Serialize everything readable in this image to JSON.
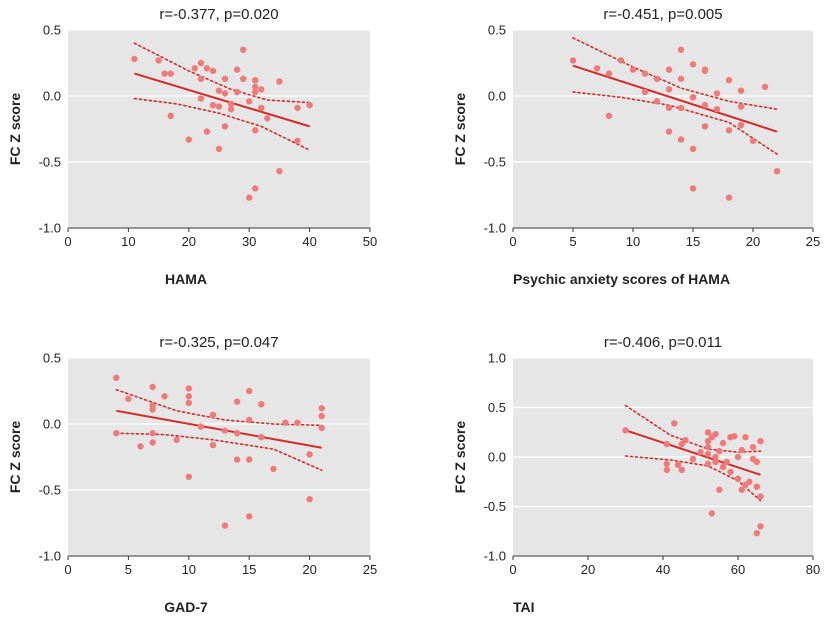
{
  "colors": {
    "point": "#f07a7a",
    "fit_line": "#d42a2a",
    "ci_line": "#d42a2a",
    "plot_background": "#e6e6e6",
    "grid": "#ffffff"
  },
  "chart_data": [
    {
      "type": "scatter",
      "title": "r=-0.377, p=0.020",
      "xlabel": "HAMA",
      "ylabel": "FC Z score",
      "xlim": [
        0,
        50
      ],
      "ylim": [
        -1.0,
        0.5
      ],
      "xticks": [
        0,
        10,
        20,
        30,
        40,
        50
      ],
      "yticks": [
        0.5,
        0.0,
        -0.5,
        -1.0
      ],
      "xtick_labels": [
        "0",
        "10",
        "20",
        "30",
        "40",
        "50"
      ],
      "ytick_labels": [
        "0.5",
        "0.0",
        "-0.5",
        "-1.0"
      ],
      "points": [
        [
          11,
          0.28
        ],
        [
          15,
          0.27
        ],
        [
          16,
          0.17
        ],
        [
          17,
          0.17
        ],
        [
          17,
          -0.15
        ],
        [
          20,
          -0.33
        ],
        [
          21,
          0.21
        ],
        [
          22,
          0.25
        ],
        [
          22,
          0.13
        ],
        [
          22,
          -0.02
        ],
        [
          23,
          -0.27
        ],
        [
          23,
          0.21
        ],
        [
          24,
          0.19
        ],
        [
          24,
          -0.07
        ],
        [
          25,
          0.04
        ],
        [
          25,
          -0.08
        ],
        [
          25,
          -0.4
        ],
        [
          26,
          0.13
        ],
        [
          26,
          0.02
        ],
        [
          26,
          -0.23
        ],
        [
          27,
          -0.06
        ],
        [
          27,
          -0.1
        ],
        [
          28,
          0.2
        ],
        [
          28,
          0.03
        ],
        [
          29,
          0.35
        ],
        [
          29,
          0.13
        ],
        [
          30,
          -0.77
        ],
        [
          30,
          -0.04
        ],
        [
          31,
          0.12
        ],
        [
          31,
          0.07
        ],
        [
          31,
          0.03
        ],
        [
          31,
          -0.7
        ],
        [
          31,
          -0.26
        ],
        [
          32,
          0.05
        ],
        [
          32,
          -0.09
        ],
        [
          33,
          -0.17
        ],
        [
          35,
          0.11
        ],
        [
          35,
          -0.57
        ],
        [
          38,
          -0.09
        ],
        [
          38,
          -0.34
        ],
        [
          40,
          -0.07
        ]
      ],
      "fit": {
        "x": [
          11,
          40
        ],
        "y": [
          0.17,
          -0.23
        ]
      },
      "ci_upper": {
        "x": [
          11,
          20,
          27,
          33,
          40
        ],
        "y": [
          0.4,
          0.19,
          0.05,
          -0.03,
          -0.05
        ]
      },
      "ci_lower": {
        "x": [
          11,
          18,
          25,
          32,
          40
        ],
        "y": [
          -0.02,
          -0.06,
          -0.13,
          -0.23,
          -0.41
        ]
      }
    },
    {
      "type": "scatter",
      "title": "r=-0.451, p=0.005",
      "xlabel": "Psychic anxiety scores of HAMA",
      "ylabel": "FC Z score",
      "xlim": [
        0,
        25
      ],
      "ylim": [
        -1.0,
        0.5
      ],
      "xticks": [
        0,
        5,
        10,
        15,
        20,
        25
      ],
      "yticks": [
        0.5,
        0.0,
        -0.5,
        -1.0
      ],
      "xtick_labels": [
        "0",
        "5",
        "10",
        "15",
        "20",
        "25"
      ],
      "ytick_labels": [
        "0.5",
        "0.0",
        "-0.5",
        "-1.0"
      ],
      "points": [
        [
          5,
          0.27
        ],
        [
          7,
          0.21
        ],
        [
          8,
          0.17
        ],
        [
          8,
          -0.15
        ],
        [
          9,
          0.27
        ],
        [
          10,
          0.2
        ],
        [
          11,
          0.17
        ],
        [
          11,
          0.03
        ],
        [
          12,
          0.13
        ],
        [
          12,
          -0.04
        ],
        [
          13,
          0.2
        ],
        [
          13,
          0.05
        ],
        [
          13,
          -0.09
        ],
        [
          13,
          -0.27
        ],
        [
          14,
          0.35
        ],
        [
          14,
          0.13
        ],
        [
          14,
          -0.09
        ],
        [
          14,
          -0.33
        ],
        [
          15,
          0.24
        ],
        [
          15,
          -0.01
        ],
        [
          15,
          -0.4
        ],
        [
          15,
          -0.7
        ],
        [
          16,
          0.2
        ],
        [
          16,
          0.19
        ],
        [
          16,
          -0.07
        ],
        [
          16,
          -0.23
        ],
        [
          17,
          0.02
        ],
        [
          17,
          -0.1
        ],
        [
          18,
          0.12
        ],
        [
          18,
          -0.77
        ],
        [
          18,
          -0.26
        ],
        [
          19,
          0.04
        ],
        [
          19,
          -0.08
        ],
        [
          19,
          -0.22
        ],
        [
          20,
          -0.34
        ],
        [
          21,
          0.07
        ],
        [
          22,
          -0.57
        ]
      ],
      "fit": {
        "x": [
          5,
          22
        ],
        "y": [
          0.23,
          -0.27
        ]
      },
      "ci_upper": {
        "x": [
          5,
          10,
          14,
          18,
          22
        ],
        "y": [
          0.44,
          0.22,
          0.06,
          -0.04,
          -0.1
        ]
      },
      "ci_lower": {
        "x": [
          5,
          9,
          13,
          18,
          22
        ],
        "y": [
          0.03,
          -0.01,
          -0.07,
          -0.2,
          -0.44
        ]
      }
    },
    {
      "type": "scatter",
      "title": "r=-0.325, p=0.047",
      "xlabel": "GAD-7",
      "ylabel": "FC Z score",
      "xlim": [
        0,
        25
      ],
      "ylim": [
        -1.0,
        0.5
      ],
      "xticks": [
        0,
        5,
        10,
        15,
        20,
        25
      ],
      "yticks": [
        0.5,
        0.0,
        -0.5,
        -1.0
      ],
      "xtick_labels": [
        "0",
        "5",
        "10",
        "15",
        "20",
        "25"
      ],
      "ytick_labels": [
        "0.5",
        "0.0",
        "-0.5",
        "-1.0"
      ],
      "points": [
        [
          4,
          0.35
        ],
        [
          4,
          -0.07
        ],
        [
          5,
          0.19
        ],
        [
          6,
          -0.17
        ],
        [
          7,
          0.28
        ],
        [
          7,
          0.14
        ],
        [
          7,
          0.11
        ],
        [
          7,
          -0.07
        ],
        [
          7,
          -0.14
        ],
        [
          8,
          0.21
        ],
        [
          9,
          -0.12
        ],
        [
          10,
          0.27
        ],
        [
          10,
          0.21
        ],
        [
          10,
          0.16
        ],
        [
          10,
          -0.4
        ],
        [
          11,
          -0.02
        ],
        [
          12,
          0.07
        ],
        [
          12,
          -0.16
        ],
        [
          13,
          -0.77
        ],
        [
          13,
          -0.05
        ],
        [
          14,
          0.17
        ],
        [
          14,
          -0.07
        ],
        [
          14,
          -0.27
        ],
        [
          15,
          0.25
        ],
        [
          15,
          0.03
        ],
        [
          15,
          -0.27
        ],
        [
          15,
          -0.7
        ],
        [
          16,
          0.15
        ],
        [
          16,
          -0.1
        ],
        [
          17,
          -0.34
        ],
        [
          18,
          0.01
        ],
        [
          19,
          0.01
        ],
        [
          20,
          -0.23
        ],
        [
          20,
          -0.57
        ],
        [
          21,
          0.12
        ],
        [
          21,
          0.06
        ],
        [
          21,
          -0.03
        ]
      ],
      "fit": {
        "x": [
          4,
          21
        ],
        "y": [
          0.1,
          -0.18
        ]
      },
      "ci_upper": {
        "x": [
          4,
          9,
          13,
          17,
          21
        ],
        "y": [
          0.26,
          0.1,
          0.03,
          0.0,
          -0.01
        ]
      },
      "ci_lower": {
        "x": [
          4,
          8,
          12,
          17,
          21
        ],
        "y": [
          -0.07,
          -0.08,
          -0.12,
          -0.19,
          -0.35
        ]
      }
    },
    {
      "type": "scatter",
      "title": "r=-0.406, p=0.011",
      "xlabel": "TAI",
      "ylabel": "FC Z score",
      "xlim": [
        0,
        80
      ],
      "ylim": [
        -1.0,
        1.0
      ],
      "xticks": [
        0,
        20,
        40,
        60,
        80
      ],
      "yticks": [
        1.0,
        0.5,
        0.0,
        -0.5,
        -1.0
      ],
      "xtick_labels": [
        "0",
        "20",
        "40",
        "60",
        "80"
      ],
      "ytick_labels": [
        "1.0",
        "0.5",
        "0.0",
        "-0.5",
        "-1.0"
      ],
      "points": [
        [
          30,
          0.27
        ],
        [
          41,
          0.13
        ],
        [
          41,
          -0.07
        ],
        [
          41,
          -0.13
        ],
        [
          43,
          0.34
        ],
        [
          44,
          -0.08
        ],
        [
          45,
          0.13
        ],
        [
          45,
          -0.13
        ],
        [
          46,
          0.17
        ],
        [
          48,
          -0.02
        ],
        [
          50,
          0.05
        ],
        [
          52,
          0.25
        ],
        [
          52,
          0.16
        ],
        [
          52,
          0.1
        ],
        [
          52,
          0.03
        ],
        [
          52,
          -0.07
        ],
        [
          53,
          0.2
        ],
        [
          53,
          -0.57
        ],
        [
          54,
          0.23
        ],
        [
          54,
          0.0
        ],
        [
          54,
          -0.05
        ],
        [
          55,
          0.06
        ],
        [
          55,
          -0.33
        ],
        [
          56,
          0.14
        ],
        [
          56,
          -0.1
        ],
        [
          57,
          -0.05
        ],
        [
          58,
          0.2
        ],
        [
          58,
          -0.15
        ],
        [
          59,
          0.21
        ],
        [
          60,
          0.0
        ],
        [
          60,
          -0.22
        ],
        [
          61,
          0.07
        ],
        [
          61,
          -0.33
        ],
        [
          62,
          0.2
        ],
        [
          62,
          -0.28
        ],
        [
          63,
          -0.25
        ],
        [
          64,
          0.1
        ],
        [
          64,
          -0.02
        ],
        [
          65,
          -0.05
        ],
        [
          65,
          -0.77
        ],
        [
          65,
          -0.3
        ],
        [
          66,
          0.16
        ],
        [
          66,
          -0.4
        ],
        [
          66,
          -0.7
        ]
      ],
      "fit": {
        "x": [
          30,
          66
        ],
        "y": [
          0.27,
          -0.18
        ]
      },
      "ci_upper": {
        "x": [
          30,
          42,
          52,
          60,
          66
        ],
        "y": [
          0.52,
          0.22,
          0.08,
          0.05,
          0.06
        ]
      },
      "ci_lower": {
        "x": [
          30,
          42,
          52,
          60,
          66
        ],
        "y": [
          0.01,
          -0.03,
          -0.09,
          -0.24,
          -0.44
        ]
      }
    }
  ]
}
